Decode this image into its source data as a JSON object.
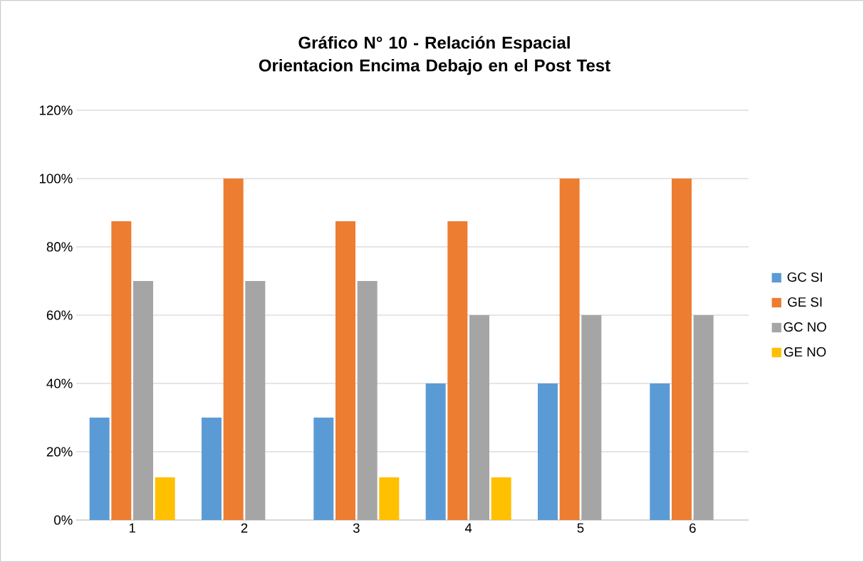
{
  "chart_data": {
    "type": "bar",
    "title": "Gráfico N° 10 - Relación Espacial Orientacion Encima Debajo en el Post Test",
    "categories": [
      "1",
      "2",
      "3",
      "4",
      "5",
      "6"
    ],
    "series": [
      {
        "name": "GC SI",
        "color": "#5b9bd5",
        "values": [
          30,
          30,
          30,
          40,
          40,
          40
        ]
      },
      {
        "name": "GE SI",
        "color": "#ed7d31",
        "values": [
          87.5,
          100,
          87.5,
          87.5,
          100,
          100
        ]
      },
      {
        "name": "GC NO",
        "color": "#a5a5a5",
        "values": [
          70,
          70,
          70,
          60,
          60,
          60
        ]
      },
      {
        "name": "GE NO",
        "color": "#ffc000",
        "values": [
          12.5,
          0,
          12.5,
          12.5,
          0,
          0
        ]
      }
    ],
    "ylim": [
      0,
      120
    ],
    "yticks": [
      {
        "value": 0,
        "label": "0%"
      },
      {
        "value": 20,
        "label": "20%"
      },
      {
        "value": 40,
        "label": "40%"
      },
      {
        "value": 60,
        "label": "60%"
      },
      {
        "value": 80,
        "label": "80%"
      },
      {
        "value": 100,
        "label": "100%"
      },
      {
        "value": 120,
        "label": "120%"
      }
    ],
    "grid": "y",
    "legend": "right"
  }
}
